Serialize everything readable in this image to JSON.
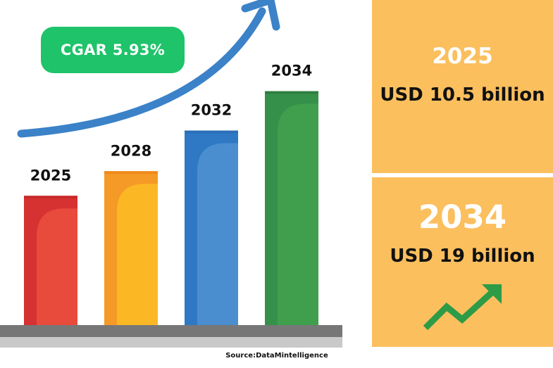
{
  "chart_data": {
    "type": "bar",
    "categories": [
      "2025",
      "2028",
      "2032",
      "2034"
    ],
    "values": [
      10.5,
      12.5,
      15.8,
      19
    ],
    "colors": [
      "#d63232",
      "#f59a27",
      "#2e78c4",
      "#35914a"
    ],
    "colors_light": [
      "#e84a3c",
      "#fcb824",
      "#4a8ed0",
      "#3f9f4d"
    ],
    "colors_dark": [
      "#c82a2a",
      "#ee8a1e",
      "#2a6fb8",
      "#2f7f40"
    ],
    "ylim": [
      0,
      20
    ],
    "cagr_label": "CGAR 5.93%"
  },
  "panels": {
    "top": {
      "year": "2025",
      "value": "USD 10.5 billion"
    },
    "bottom": {
      "year": "2034",
      "value": "USD 19 billion"
    }
  },
  "source": "Source:DataMintelligence",
  "colors": {
    "panel": "#fbbf5e",
    "cagr_pill": "#1ec36a",
    "arrow": "#3b82c8",
    "trend_icon": "#2e9b46",
    "floor": "#777777"
  },
  "icons": [
    "growth-arrow-icon",
    "trend-up-icon"
  ]
}
